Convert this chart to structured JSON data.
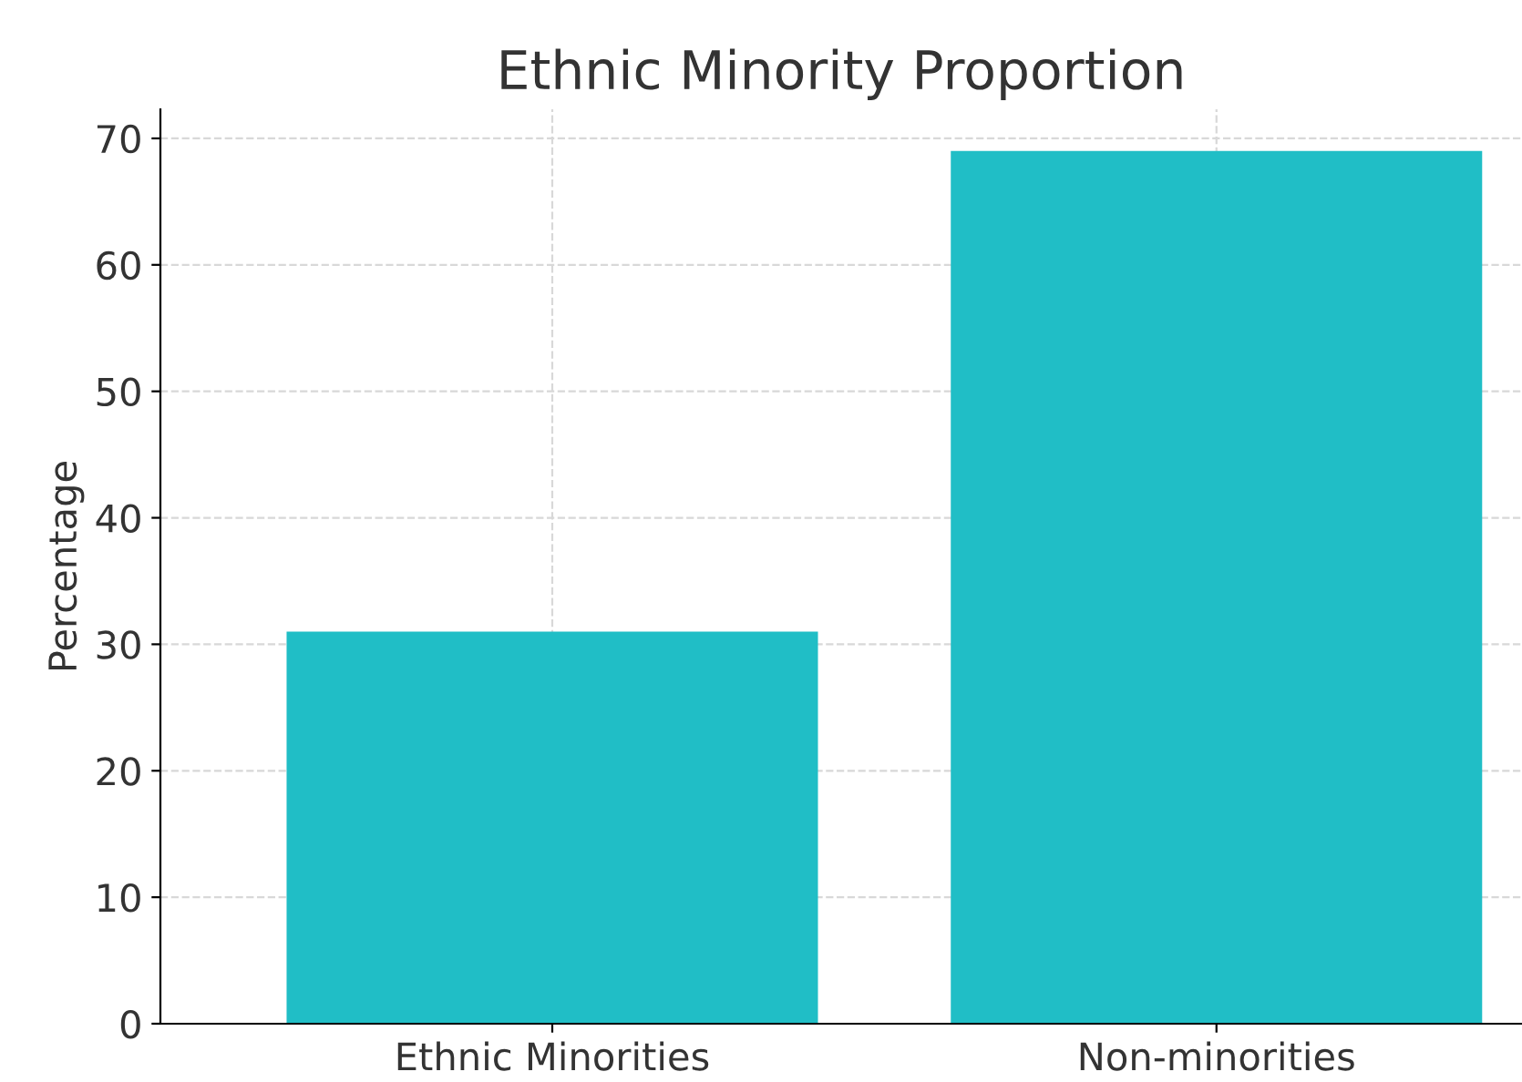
{
  "chart_data": {
    "type": "bar",
    "title": "Ethnic Minority Proportion",
    "ylabel": "Percentage",
    "categories": [
      "Ethnic Minorities",
      "Non-minorities"
    ],
    "values": [
      31,
      69
    ],
    "color": "#20bec6",
    "ylim": [
      0,
      72.3
    ],
    "yticks": [
      0,
      10,
      20,
      30,
      40,
      50,
      60,
      70
    ],
    "grid": true
  }
}
